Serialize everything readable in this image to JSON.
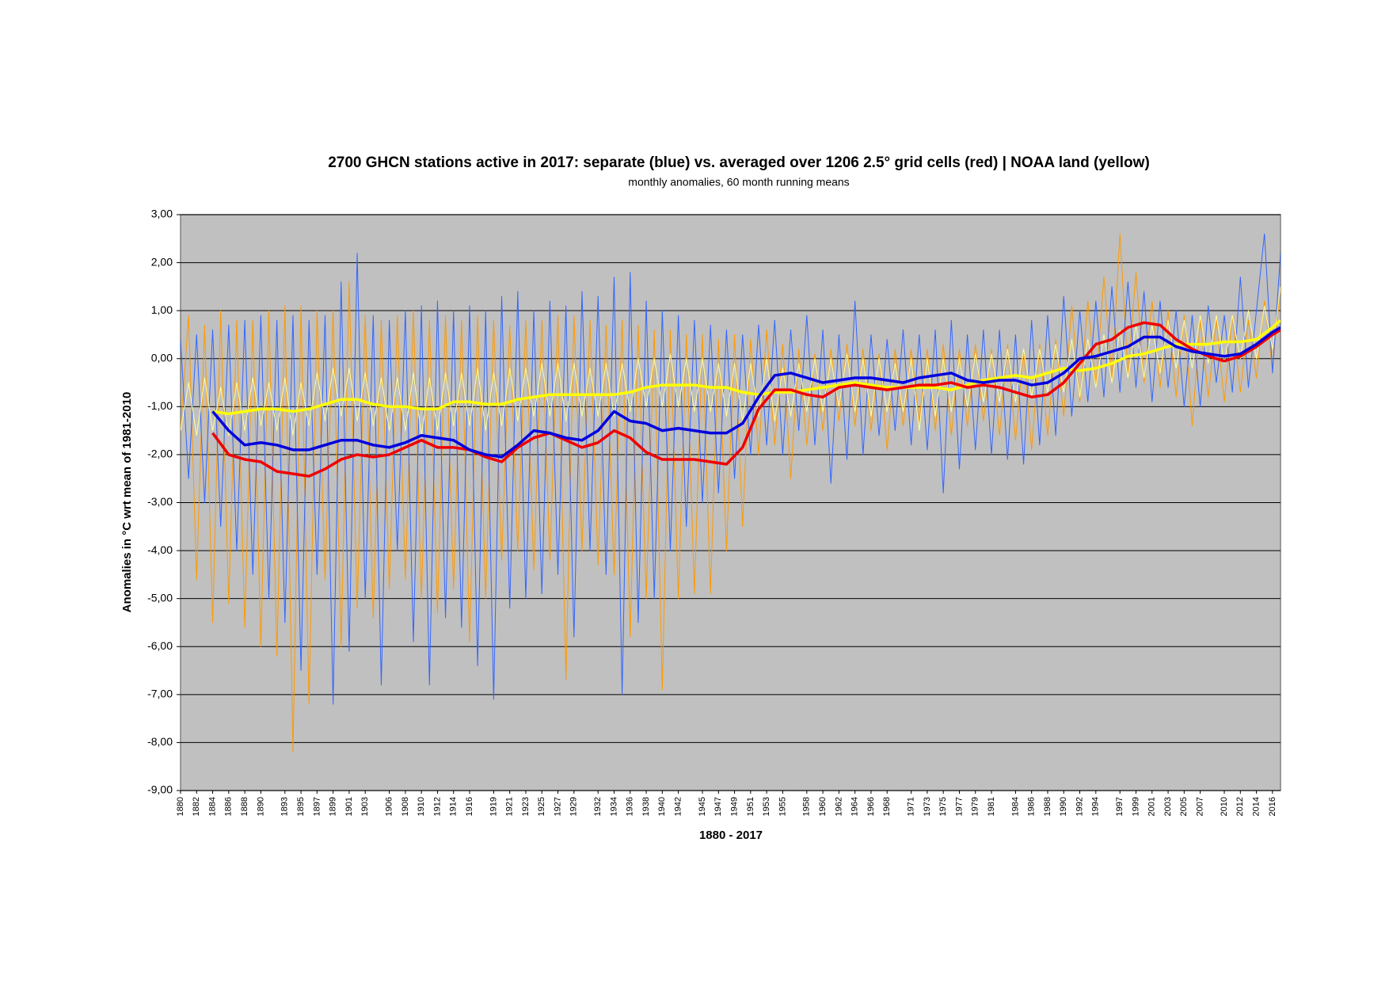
{
  "chart_data": {
    "type": "line",
    "title": "2700 GHCN stations active in 2017: separate (blue) vs. averaged over 1206 2.5° grid cells (red) | NOAA land (yellow)",
    "subtitle": "monthly anomalies, 60 month running means",
    "xlabel": "1880 - 2017",
    "ylabel": "Anomalies in °C wrt mean of 1981-2010",
    "xlim": [
      1880,
      2017
    ],
    "ylim": [
      -9,
      3
    ],
    "grid": true,
    "x": [
      1880,
      1881,
      1882,
      1883,
      1884,
      1885,
      1886,
      1887,
      1888,
      1889,
      1890,
      1891,
      1892,
      1893,
      1894,
      1895,
      1896,
      1897,
      1898,
      1899,
      1900,
      1901,
      1902,
      1903,
      1904,
      1905,
      1906,
      1907,
      1908,
      1909,
      1910,
      1911,
      1912,
      1913,
      1914,
      1915,
      1916,
      1917,
      1918,
      1919,
      1920,
      1921,
      1922,
      1923,
      1924,
      1925,
      1926,
      1927,
      1928,
      1929,
      1930,
      1931,
      1932,
      1933,
      1934,
      1935,
      1936,
      1937,
      1938,
      1939,
      1940,
      1941,
      1942,
      1943,
      1944,
      1945,
      1946,
      1947,
      1948,
      1949,
      1950,
      1951,
      1952,
      1953,
      1954,
      1955,
      1956,
      1957,
      1958,
      1959,
      1960,
      1961,
      1962,
      1963,
      1964,
      1965,
      1966,
      1967,
      1968,
      1969,
      1970,
      1971,
      1972,
      1973,
      1974,
      1975,
      1976,
      1977,
      1978,
      1979,
      1980,
      1981,
      1982,
      1983,
      1984,
      1985,
      1986,
      1987,
      1988,
      1989,
      1990,
      1991,
      1992,
      1993,
      1994,
      1995,
      1996,
      1997,
      1998,
      1999,
      2000,
      2001,
      2002,
      2003,
      2004,
      2005,
      2006,
      2007,
      2008,
      2009,
      2010,
      2011,
      2012,
      2013,
      2014,
      2015,
      2016,
      2017
    ],
    "xticks": [
      1880,
      1882,
      1884,
      1886,
      1888,
      1890,
      1893,
      1895,
      1897,
      1899,
      1901,
      1903,
      1906,
      1908,
      1910,
      1912,
      1914,
      1916,
      1919,
      1921,
      1923,
      1925,
      1927,
      1929,
      1932,
      1934,
      1936,
      1938,
      1940,
      1942,
      1945,
      1947,
      1949,
      1951,
      1953,
      1955,
      1958,
      1960,
      1962,
      1964,
      1966,
      1968,
      1971,
      1973,
      1975,
      1977,
      1979,
      1981,
      1984,
      1986,
      1988,
      1990,
      1992,
      1994,
      1997,
      1999,
      2001,
      2003,
      2005,
      2007,
      2010,
      2012,
      2014,
      2016
    ],
    "yticks": [
      {
        "value": 3,
        "label": "3,00"
      },
      {
        "value": 2,
        "label": "2,00"
      },
      {
        "value": 1,
        "label": "1,00"
      },
      {
        "value": 0,
        "label": "0,00"
      },
      {
        "value": -1,
        "label": "-1,00"
      },
      {
        "value": -2,
        "label": "-2,00"
      },
      {
        "value": -3,
        "label": "-3,00"
      },
      {
        "value": -4,
        "label": "-4,00"
      },
      {
        "value": -5,
        "label": "-5,00"
      },
      {
        "value": -6,
        "label": "-6,00"
      },
      {
        "value": -7,
        "label": "-7,00"
      },
      {
        "value": -8,
        "label": "-8,00"
      },
      {
        "value": -9,
        "label": "-9,00"
      }
    ],
    "series": [
      {
        "color": "#ff9900",
        "width": 1,
        "values": [
          -1.5,
          0.9,
          -4.6,
          0.7,
          -5.5,
          1.0,
          -5.1,
          0.8,
          -5.6,
          0.8,
          -6.0,
          1.0,
          -6.2,
          1.1,
          -8.2,
          1.1,
          -7.2,
          1.0,
          -4.6,
          1.0,
          -6.0,
          1.6,
          -5.2,
          0.9,
          -5.4,
          0.8,
          -4.8,
          0.9,
          -4.6,
          1.0,
          -5.0,
          0.8,
          -5.3,
          0.9,
          -4.8,
          0.8,
          -5.9,
          0.9,
          -5.0,
          0.8,
          -4.2,
          0.7,
          -4.0,
          0.8,
          -4.4,
          0.8,
          -4.2,
          0.9,
          -6.7,
          0.9,
          -4.0,
          0.8,
          -4.3,
          0.7,
          -4.5,
          0.8,
          -5.8,
          0.7,
          -5.0,
          0.6,
          -6.9,
          0.6,
          -5.0,
          0.5,
          -4.9,
          0.5,
          -4.9,
          0.4,
          -4.0,
          0.5,
          -3.5,
          0.4,
          -2.0,
          0.6,
          -1.8,
          0.3,
          -2.5,
          0.2,
          -1.8,
          0.1,
          -1.5,
          0.2,
          -1.3,
          0.3,
          -1.4,
          0.2,
          -1.5,
          0.1,
          -1.9,
          0.2,
          -1.4,
          0.2,
          -1.3,
          0.2,
          -1.5,
          0.3,
          -1.6,
          0.2,
          -1.4,
          0.3,
          -1.3,
          0.2,
          -1.6,
          0.3,
          -1.7,
          0.2,
          -1.9,
          0.3,
          -1.6,
          0.4,
          -1.2,
          1.1,
          -0.9,
          1.2,
          -0.6,
          1.7,
          -0.4,
          2.6,
          -0.3,
          1.8,
          -0.5,
          1.2,
          -0.6,
          1.0,
          -0.8,
          0.9,
          -1.4,
          0.8,
          -0.8,
          0.8,
          -0.9,
          0.9,
          -0.7,
          0.8,
          -0.4,
          1.2,
          -0.2,
          1.5
        ]
      },
      {
        "color": "#3366ff",
        "width": 1,
        "values": [
          0.4,
          -2.5,
          0.5,
          -3.0,
          0.6,
          -3.5,
          0.7,
          -4.0,
          0.8,
          -4.5,
          0.9,
          -5.0,
          0.8,
          -5.5,
          0.9,
          -6.5,
          0.8,
          -4.5,
          0.9,
          -7.2,
          1.6,
          -6.1,
          2.2,
          -5.0,
          0.9,
          -6.8,
          0.8,
          -4.0,
          1.0,
          -5.9,
          1.1,
          -6.8,
          1.2,
          -5.4,
          1.0,
          -5.6,
          1.1,
          -6.4,
          1.0,
          -7.1,
          1.3,
          -5.2,
          1.4,
          -5.0,
          1.0,
          -4.9,
          1.2,
          -4.5,
          1.1,
          -5.8,
          1.4,
          -4.0,
          1.3,
          -4.5,
          1.7,
          -7.0,
          1.8,
          -5.5,
          1.2,
          -5.0,
          1.0,
          -4.0,
          0.9,
          -3.5,
          0.8,
          -3.0,
          0.7,
          -2.8,
          0.6,
          -2.5,
          0.5,
          -2.0,
          0.7,
          -1.8,
          0.8,
          -2.0,
          0.6,
          -1.5,
          0.9,
          -1.8,
          0.6,
          -2.6,
          0.5,
          -2.1,
          1.2,
          -2.0,
          0.5,
          -1.6,
          0.4,
          -1.5,
          0.6,
          -1.8,
          0.5,
          -1.9,
          0.6,
          -2.8,
          0.8,
          -2.3,
          0.5,
          -1.9,
          0.6,
          -2.0,
          0.6,
          -2.1,
          0.5,
          -2.2,
          0.8,
          -1.8,
          0.9,
          -1.6,
          1.3,
          -1.2,
          1.0,
          -0.9,
          1.2,
          -0.8,
          1.5,
          -0.7,
          1.6,
          -0.6,
          1.4,
          -0.9,
          1.2,
          -0.6,
          1.0,
          -1.0,
          0.9,
          -1.0,
          1.1,
          -0.5,
          0.9,
          -0.7,
          1.7,
          -0.6,
          1.0,
          2.6,
          -0.3,
          2.2
        ]
      },
      {
        "color": "#ffff99",
        "width": 1,
        "values": [
          -1.5,
          -0.5,
          -1.6,
          -0.4,
          -1.5,
          -0.6,
          -1.6,
          -0.5,
          -1.5,
          -0.4,
          -1.4,
          -0.5,
          -1.5,
          -0.4,
          -1.6,
          -0.5,
          -1.4,
          -0.3,
          -1.3,
          -0.2,
          -1.2,
          -0.2,
          -1.3,
          -0.3,
          -1.4,
          -0.4,
          -1.5,
          -0.4,
          -1.5,
          -0.3,
          -1.6,
          -0.4,
          -1.5,
          -0.3,
          -1.4,
          -0.3,
          -1.4,
          -0.2,
          -1.5,
          -0.3,
          -1.4,
          -0.2,
          -1.3,
          -0.2,
          -1.2,
          -0.1,
          -1.2,
          -0.1,
          -1.3,
          -0.1,
          -1.2,
          -0.2,
          -1.2,
          -0.1,
          -1.2,
          -0.1,
          -1.1,
          0.0,
          -1.0,
          0.0,
          -1.0,
          0.1,
          -1.0,
          0.0,
          -1.1,
          0.0,
          -1.1,
          -0.1,
          -1.2,
          -0.1,
          -1.3,
          -0.1,
          -1.2,
          0.0,
          -1.3,
          -0.2,
          -1.2,
          -0.1,
          -1.1,
          0.0,
          -1.1,
          0.0,
          -1.0,
          0.1,
          -1.1,
          0.0,
          -1.2,
          0.0,
          -1.1,
          -0.1,
          -1.1,
          0.0,
          -1.5,
          0.0,
          -1.2,
          0.0,
          -1.1,
          0.0,
          -1.0,
          0.1,
          -0.9,
          0.1,
          -0.9,
          0.2,
          -0.9,
          0.2,
          -0.8,
          0.2,
          -0.7,
          0.3,
          -0.7,
          0.4,
          -0.8,
          0.4,
          -0.6,
          0.5,
          -0.5,
          0.6,
          -0.4,
          0.7,
          -0.4,
          0.7,
          -0.3,
          0.8,
          -0.2,
          0.8,
          -0.2,
          0.9,
          -0.1,
          0.9,
          -0.1,
          0.9,
          0.0,
          1.0,
          0.0,
          1.1,
          0.2,
          1.5
        ]
      },
      {
        "color": "#ffff00",
        "width": 3.5,
        "x": [
          1884,
          1886,
          1888,
          1890,
          1892,
          1894,
          1896,
          1898,
          1900,
          1902,
          1904,
          1906,
          1908,
          1910,
          1912,
          1914,
          1916,
          1918,
          1920,
          1922,
          1924,
          1926,
          1928,
          1930,
          1932,
          1934,
          1936,
          1938,
          1940,
          1942,
          1944,
          1946,
          1948,
          1950,
          1952,
          1954,
          1956,
          1958,
          1960,
          1962,
          1964,
          1966,
          1968,
          1970,
          1972,
          1974,
          1976,
          1978,
          1980,
          1982,
          1984,
          1986,
          1988,
          1990,
          1992,
          1994,
          1996,
          1998,
          2000,
          2002,
          2004,
          2006,
          2008,
          2010,
          2012,
          2014,
          2016,
          2017
        ],
        "values": [
          -1.1,
          -1.15,
          -1.1,
          -1.05,
          -1.05,
          -1.1,
          -1.05,
          -0.95,
          -0.85,
          -0.85,
          -0.95,
          -1.0,
          -1.0,
          -1.05,
          -1.05,
          -0.9,
          -0.9,
          -0.95,
          -0.95,
          -0.85,
          -0.8,
          -0.75,
          -0.75,
          -0.75,
          -0.75,
          -0.75,
          -0.7,
          -0.6,
          -0.55,
          -0.55,
          -0.55,
          -0.6,
          -0.6,
          -0.7,
          -0.75,
          -0.7,
          -0.7,
          -0.65,
          -0.6,
          -0.55,
          -0.5,
          -0.55,
          -0.6,
          -0.6,
          -0.6,
          -0.6,
          -0.65,
          -0.55,
          -0.45,
          -0.4,
          -0.35,
          -0.4,
          -0.3,
          -0.2,
          -0.25,
          -0.2,
          -0.1,
          0.05,
          0.1,
          0.2,
          0.3,
          0.3,
          0.3,
          0.35,
          0.35,
          0.4,
          0.65,
          0.8
        ]
      },
      {
        "color": "#ee0000",
        "width": 3.5,
        "x": [
          1884,
          1886,
          1888,
          1890,
          1892,
          1894,
          1896,
          1898,
          1900,
          1902,
          1904,
          1906,
          1908,
          1910,
          1912,
          1914,
          1916,
          1918,
          1920,
          1922,
          1924,
          1926,
          1928,
          1930,
          1932,
          1934,
          1936,
          1938,
          1940,
          1942,
          1944,
          1946,
          1948,
          1950,
          1952,
          1954,
          1956,
          1958,
          1960,
          1962,
          1964,
          1966,
          1968,
          1970,
          1972,
          1974,
          1976,
          1978,
          1980,
          1982,
          1984,
          1986,
          1988,
          1990,
          1992,
          1994,
          1996,
          1998,
          2000,
          2002,
          2004,
          2006,
          2008,
          2010,
          2012,
          2014,
          2016,
          2017
        ],
        "values": [
          -1.55,
          -2.0,
          -2.1,
          -2.15,
          -2.35,
          -2.4,
          -2.45,
          -2.3,
          -2.1,
          -2.0,
          -2.05,
          -2.0,
          -1.85,
          -1.7,
          -1.85,
          -1.85,
          -1.9,
          -2.05,
          -2.15,
          -1.85,
          -1.65,
          -1.55,
          -1.7,
          -1.85,
          -1.75,
          -1.5,
          -1.65,
          -1.95,
          -2.1,
          -2.1,
          -2.1,
          -2.15,
          -2.2,
          -1.85,
          -1.05,
          -0.65,
          -0.65,
          -0.75,
          -0.8,
          -0.6,
          -0.55,
          -0.6,
          -0.65,
          -0.6,
          -0.55,
          -0.55,
          -0.5,
          -0.6,
          -0.55,
          -0.6,
          -0.7,
          -0.8,
          -0.75,
          -0.5,
          -0.1,
          0.3,
          0.4,
          0.65,
          0.75,
          0.7,
          0.4,
          0.2,
          0.05,
          -0.05,
          0.05,
          0.25,
          0.5,
          0.6
        ]
      },
      {
        "color": "#0000dd",
        "width": 3.5,
        "x": [
          1884,
          1886,
          1888,
          1890,
          1892,
          1894,
          1896,
          1898,
          1900,
          1902,
          1904,
          1906,
          1908,
          1910,
          1912,
          1914,
          1916,
          1918,
          1920,
          1922,
          1924,
          1926,
          1928,
          1930,
          1932,
          1934,
          1936,
          1938,
          1940,
          1942,
          1944,
          1946,
          1948,
          1950,
          1952,
          1954,
          1956,
          1958,
          1960,
          1962,
          1964,
          1966,
          1968,
          1970,
          1972,
          1974,
          1976,
          1978,
          1980,
          1982,
          1984,
          1986,
          1988,
          1990,
          1992,
          1994,
          1996,
          1998,
          2000,
          2002,
          2004,
          2006,
          2008,
          2010,
          2012,
          2014,
          2016,
          2017
        ],
        "values": [
          -1.1,
          -1.5,
          -1.8,
          -1.75,
          -1.8,
          -1.9,
          -1.9,
          -1.8,
          -1.7,
          -1.7,
          -1.8,
          -1.85,
          -1.75,
          -1.6,
          -1.65,
          -1.7,
          -1.9,
          -2.0,
          -2.05,
          -1.8,
          -1.5,
          -1.55,
          -1.65,
          -1.7,
          -1.5,
          -1.1,
          -1.3,
          -1.35,
          -1.5,
          -1.45,
          -1.5,
          -1.55,
          -1.55,
          -1.35,
          -0.8,
          -0.35,
          -0.3,
          -0.4,
          -0.5,
          -0.45,
          -0.4,
          -0.4,
          -0.45,
          -0.5,
          -0.4,
          -0.35,
          -0.3,
          -0.45,
          -0.5,
          -0.45,
          -0.45,
          -0.55,
          -0.5,
          -0.3,
          0.0,
          0.05,
          0.15,
          0.25,
          0.45,
          0.45,
          0.25,
          0.15,
          0.1,
          0.05,
          0.1,
          0.3,
          0.55,
          0.65
        ]
      }
    ]
  }
}
